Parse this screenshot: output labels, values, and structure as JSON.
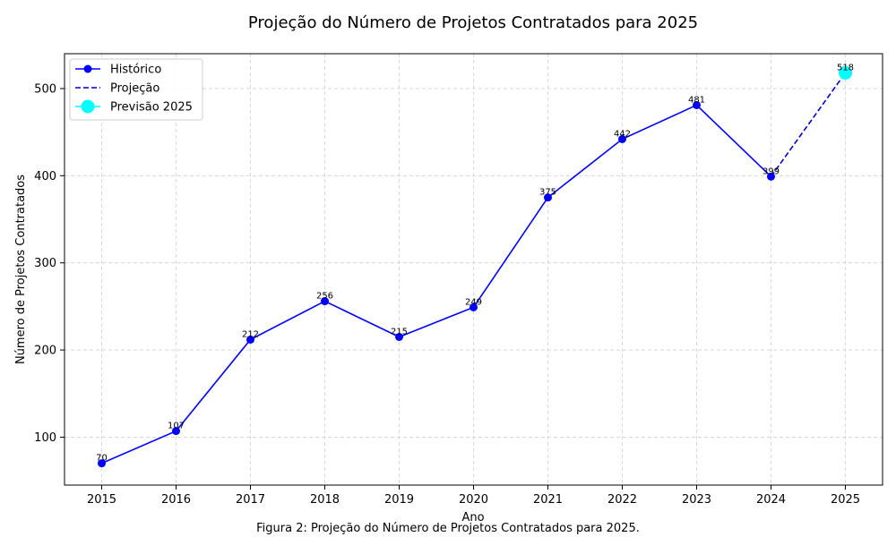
{
  "chart_data": {
    "type": "line",
    "title": "Projeção do Número de Projetos Contratados para 2025",
    "xlabel": "Ano",
    "ylabel": "Número de Projetos Contratados",
    "caption": "Figura 2: Projeção do Número de Projetos Contratados para 2025.",
    "xlim": [
      2014.5,
      2025.5
    ],
    "ylim": [
      45,
      540
    ],
    "x_ticks": [
      2015,
      2016,
      2017,
      2018,
      2019,
      2020,
      2021,
      2022,
      2023,
      2024,
      2025
    ],
    "y_ticks": [
      100,
      200,
      300,
      400,
      500
    ],
    "grid": true,
    "legend_position": "top-left",
    "series": [
      {
        "name": "Histórico",
        "style": "solid-markers",
        "color": "#0000ff",
        "x": [
          2015,
          2016,
          2017,
          2018,
          2019,
          2020,
          2021,
          2022,
          2023,
          2024
        ],
        "values": [
          70,
          107,
          212,
          256,
          215,
          249,
          375,
          442,
          481,
          399
        ]
      },
      {
        "name": "Projeção",
        "style": "dashed",
        "color": "#0000cc",
        "x": [
          2024,
          2025
        ],
        "values": [
          399,
          518
        ]
      },
      {
        "name": "Previsão 2025",
        "style": "big-marker",
        "color": "#00ffff",
        "x": [
          2025
        ],
        "values": [
          518
        ]
      }
    ],
    "data_labels": [
      {
        "x": 2015,
        "y": 70,
        "text": "70"
      },
      {
        "x": 2016,
        "y": 107,
        "text": "107"
      },
      {
        "x": 2017,
        "y": 212,
        "text": "212"
      },
      {
        "x": 2018,
        "y": 256,
        "text": "256"
      },
      {
        "x": 2019,
        "y": 215,
        "text": "215"
      },
      {
        "x": 2020,
        "y": 249,
        "text": "249"
      },
      {
        "x": 2021,
        "y": 375,
        "text": "375"
      },
      {
        "x": 2022,
        "y": 442,
        "text": "442"
      },
      {
        "x": 2023,
        "y": 481,
        "text": "481"
      },
      {
        "x": 2024,
        "y": 399,
        "text": "399"
      },
      {
        "x": 2025,
        "y": 518,
        "text": "518"
      }
    ]
  }
}
